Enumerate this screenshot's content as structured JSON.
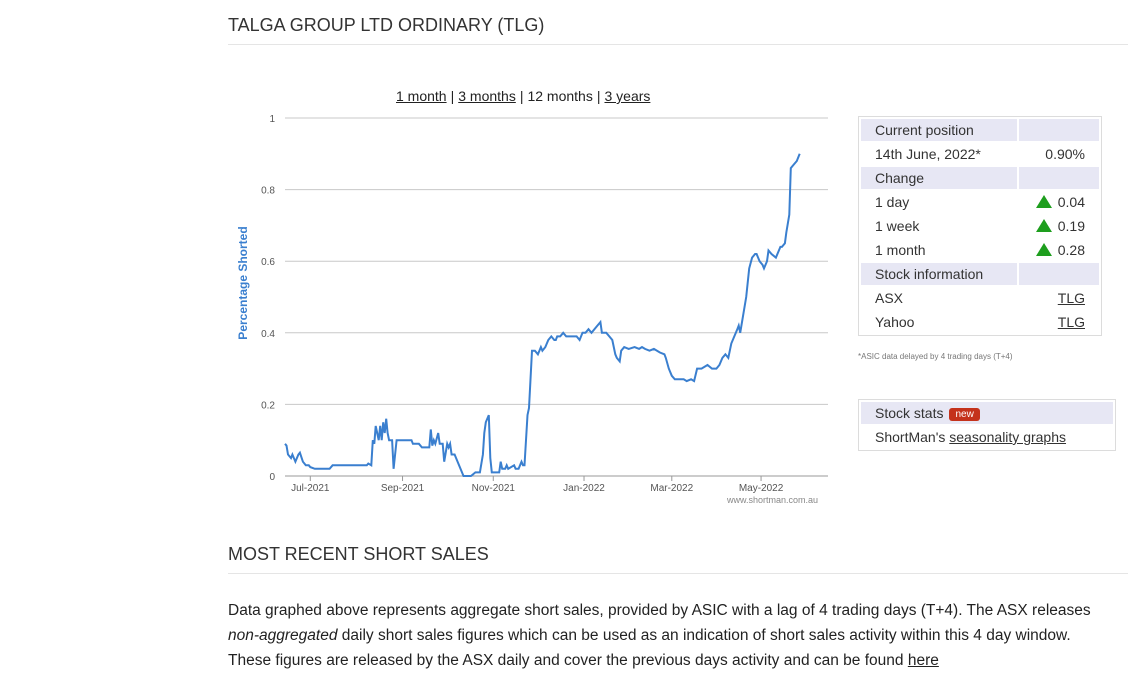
{
  "header": {
    "title": "TALGA GROUP LTD ORDINARY (TLG)"
  },
  "range_links": {
    "one_month": "1 month",
    "three_months": "3 months",
    "twelve_months": "12 months",
    "three_years": "3 years",
    "separator": "|"
  },
  "chart_data": {
    "type": "line",
    "ylabel": "Percentage Shorted",
    "ylim": [
      0,
      1
    ],
    "yticks": [
      "0",
      "0.2",
      "0.4",
      "0.6",
      "0.8",
      "1"
    ],
    "xticks": [
      "Jul-2021",
      "Sep-2021",
      "Nov-2021",
      "Jan-2022",
      "Mar-2022",
      "May-2022"
    ],
    "xrange_days": [
      0,
      365
    ],
    "xtick_days": [
      17,
      79,
      140,
      201,
      260,
      320
    ],
    "watermark": "www.shortman.com.au",
    "line_color": "#3a7fcf",
    "grid": true,
    "points": [
      [
        0,
        0.09
      ],
      [
        1,
        0.085
      ],
      [
        2,
        0.06
      ],
      [
        4,
        0.05
      ],
      [
        5,
        0.06
      ],
      [
        7,
        0.04
      ],
      [
        9,
        0.06
      ],
      [
        10,
        0.065
      ],
      [
        12,
        0.04
      ],
      [
        14,
        0.03
      ],
      [
        16,
        0.03
      ],
      [
        17,
        0.025
      ],
      [
        20,
        0.02
      ],
      [
        30,
        0.02
      ],
      [
        32,
        0.03
      ],
      [
        40,
        0.03
      ],
      [
        55,
        0.03
      ],
      [
        56,
        0.035
      ],
      [
        58,
        0.03
      ],
      [
        59,
        0.1
      ],
      [
        60,
        0.09
      ],
      [
        61,
        0.14
      ],
      [
        62,
        0.12
      ],
      [
        63,
        0.1
      ],
      [
        64,
        0.14
      ],
      [
        65,
        0.1
      ],
      [
        66,
        0.15
      ],
      [
        67,
        0.12
      ],
      [
        68,
        0.16
      ],
      [
        69,
        0.12
      ],
      [
        70,
        0.1
      ],
      [
        72,
        0.1
      ],
      [
        73,
        0.02
      ],
      [
        75,
        0.1
      ],
      [
        80,
        0.1
      ],
      [
        85,
        0.1
      ],
      [
        86,
        0.09
      ],
      [
        90,
        0.09
      ],
      [
        92,
        0.08
      ],
      [
        97,
        0.08
      ],
      [
        98,
        0.13
      ],
      [
        99,
        0.085
      ],
      [
        100,
        0.1
      ],
      [
        101,
        0.09
      ],
      [
        103,
        0.12
      ],
      [
        104,
        0.09
      ],
      [
        106,
        0.09
      ],
      [
        107,
        0.04
      ],
      [
        109,
        0.09
      ],
      [
        110,
        0.08
      ],
      [
        111,
        0.09
      ],
      [
        112,
        0.06
      ],
      [
        114,
        0.06
      ],
      [
        116,
        0.04
      ],
      [
        118,
        0.02
      ],
      [
        120,
        0.0
      ],
      [
        125,
        0.0
      ],
      [
        128,
        0.01
      ],
      [
        131,
        0.01
      ],
      [
        133,
        0.06
      ],
      [
        134,
        0.12
      ],
      [
        135,
        0.15
      ],
      [
        137,
        0.17
      ],
      [
        138,
        0.05
      ],
      [
        139,
        0.01
      ],
      [
        140,
        0.01
      ],
      [
        144,
        0.01
      ],
      [
        145,
        0.04
      ],
      [
        146,
        0.02
      ],
      [
        148,
        0.02
      ],
      [
        149,
        0.03
      ],
      [
        150,
        0.02
      ],
      [
        154,
        0.03
      ],
      [
        155,
        0.02
      ],
      [
        157,
        0.02
      ],
      [
        159,
        0.04
      ],
      [
        160,
        0.03
      ],
      [
        161,
        0.03
      ],
      [
        163,
        0.17
      ],
      [
        164,
        0.19
      ],
      [
        166,
        0.35
      ],
      [
        168,
        0.35
      ],
      [
        170,
        0.34
      ],
      [
        171,
        0.35
      ],
      [
        172,
        0.36
      ],
      [
        173,
        0.35
      ],
      [
        175,
        0.36
      ],
      [
        177,
        0.38
      ],
      [
        179,
        0.39
      ],
      [
        181,
        0.38
      ],
      [
        182,
        0.38
      ],
      [
        183,
        0.39
      ],
      [
        185,
        0.39
      ],
      [
        187,
        0.4
      ],
      [
        189,
        0.39
      ],
      [
        191,
        0.39
      ],
      [
        194,
        0.39
      ],
      [
        196,
        0.39
      ],
      [
        198,
        0.38
      ],
      [
        200,
        0.4
      ],
      [
        202,
        0.4
      ],
      [
        204,
        0.41
      ],
      [
        206,
        0.4
      ],
      [
        208,
        0.41
      ],
      [
        210,
        0.42
      ],
      [
        212,
        0.43
      ],
      [
        213,
        0.4
      ],
      [
        216,
        0.4
      ],
      [
        218,
        0.39
      ],
      [
        220,
        0.38
      ],
      [
        222,
        0.34
      ],
      [
        223,
        0.33
      ],
      [
        225,
        0.32
      ],
      [
        226,
        0.35
      ],
      [
        228,
        0.36
      ],
      [
        231,
        0.355
      ],
      [
        235,
        0.36
      ],
      [
        238,
        0.355
      ],
      [
        240,
        0.36
      ],
      [
        242,
        0.355
      ],
      [
        245,
        0.35
      ],
      [
        248,
        0.355
      ],
      [
        252,
        0.345
      ],
      [
        255,
        0.34
      ],
      [
        256,
        0.33
      ],
      [
        258,
        0.3
      ],
      [
        260,
        0.28
      ],
      [
        262,
        0.27
      ],
      [
        266,
        0.27
      ],
      [
        268,
        0.27
      ],
      [
        270,
        0.265
      ],
      [
        273,
        0.27
      ],
      [
        275,
        0.265
      ],
      [
        277,
        0.3
      ],
      [
        280,
        0.3
      ],
      [
        284,
        0.31
      ],
      [
        287,
        0.3
      ],
      [
        290,
        0.3
      ],
      [
        292,
        0.31
      ],
      [
        294,
        0.33
      ],
      [
        296,
        0.34
      ],
      [
        298,
        0.33
      ],
      [
        300,
        0.37
      ],
      [
        302,
        0.39
      ],
      [
        304,
        0.41
      ],
      [
        305,
        0.42
      ],
      [
        306,
        0.4
      ],
      [
        308,
        0.45
      ],
      [
        310,
        0.5
      ],
      [
        312,
        0.58
      ],
      [
        314,
        0.61
      ],
      [
        316,
        0.62
      ],
      [
        317,
        0.62
      ],
      [
        318,
        0.61
      ],
      [
        319,
        0.6
      ],
      [
        321,
        0.59
      ],
      [
        322,
        0.58
      ],
      [
        324,
        0.6
      ],
      [
        325,
        0.63
      ],
      [
        327,
        0.62
      ],
      [
        330,
        0.61
      ],
      [
        333,
        0.64
      ],
      [
        334,
        0.64
      ],
      [
        336,
        0.65
      ],
      [
        337,
        0.68
      ],
      [
        339,
        0.73
      ],
      [
        340,
        0.86
      ],
      [
        342,
        0.87
      ],
      [
        344,
        0.88
      ],
      [
        346,
        0.9
      ]
    ]
  },
  "position_panel": {
    "current_position_header": "Current position",
    "date": "14th June, 2022*",
    "position_value": "0.90%",
    "change_header": "Change",
    "changes": [
      {
        "label": "1 day",
        "value": "0.04"
      },
      {
        "label": "1 week",
        "value": "0.19"
      },
      {
        "label": "1 month",
        "value": "0.28"
      }
    ],
    "stock_info_header": "Stock information",
    "asx_label": "ASX",
    "asx_code": "TLG",
    "yahoo_label": "Yahoo",
    "yahoo_code": "TLG",
    "footnote": "*ASIC data delayed by 4 trading days (T+4)"
  },
  "stats_panel": {
    "title": "Stock stats",
    "badge": "new",
    "prefix": "ShortMan's",
    "link": "seasonality graphs"
  },
  "recent_section": {
    "title": "MOST RECENT SHORT SALES",
    "line1": "Data graphed above represents aggregate short sales, provided by ASIC with a lag of 4 trading days (T+4). The ASX releases",
    "emphasis": "non-aggregated",
    "line2": " daily short sales figures which can be used as an indication of short sales activity within this 4 day window.",
    "line3": "These figures are released by the ASX daily and cover the previous days activity and can be found ",
    "link": "here"
  },
  "colors": {
    "line": "#3a7fcf",
    "positive": "#1e9e1e",
    "badge": "#c4321b",
    "header_bg": "#e7e7f4"
  }
}
